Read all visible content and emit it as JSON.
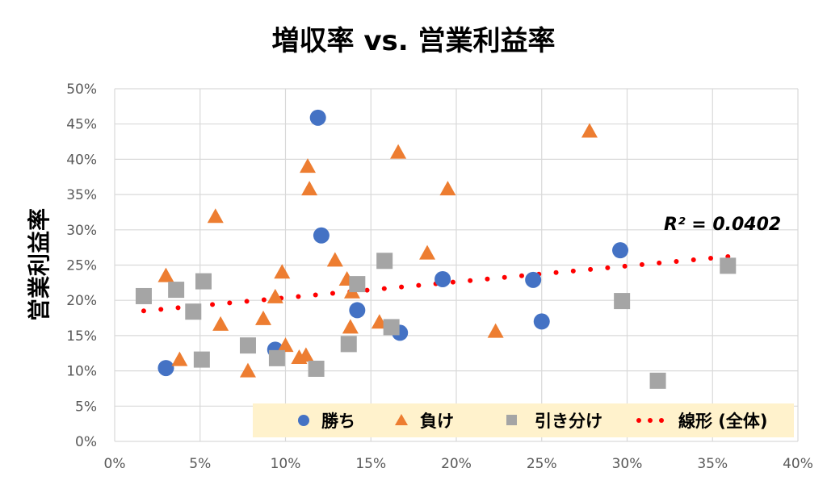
{
  "chart_data": {
    "type": "scatter",
    "title": "増収率 vs. 営業利益率",
    "xlabel": "",
    "ylabel": "営業利益率",
    "xlim": [
      0,
      40
    ],
    "ylim": [
      0,
      50
    ],
    "x_ticks": [
      "0%",
      "5%",
      "10%",
      "15%",
      "20%",
      "25%",
      "30%",
      "35%",
      "40%"
    ],
    "y_ticks": [
      "0%",
      "5%",
      "10%",
      "15%",
      "20%",
      "25%",
      "30%",
      "35%",
      "40%",
      "45%",
      "50%"
    ],
    "grid": true,
    "legend_position": "bottom-inside",
    "colors": {
      "win": "#4472c4",
      "lose": "#ed7d31",
      "draw": "#a5a5a5",
      "trend": "#ff0000",
      "legend_bg": "#fff2cc"
    },
    "series": [
      {
        "name": "勝ち",
        "marker": "circle",
        "points": [
          [
            3.0,
            10.4
          ],
          [
            11.9,
            45.9
          ],
          [
            12.1,
            29.2
          ],
          [
            9.4,
            13.0
          ],
          [
            14.2,
            18.6
          ],
          [
            16.7,
            15.4
          ],
          [
            19.2,
            23.0
          ],
          [
            24.5,
            22.9
          ],
          [
            25.0,
            17.0
          ],
          [
            29.6,
            27.1
          ]
        ]
      },
      {
        "name": "負け",
        "marker": "triangle",
        "points": [
          [
            3.0,
            23.5
          ],
          [
            3.8,
            11.6
          ],
          [
            5.9,
            31.9
          ],
          [
            6.2,
            16.6
          ],
          [
            7.8,
            10.0
          ],
          [
            8.7,
            17.4
          ],
          [
            9.4,
            20.5
          ],
          [
            9.8,
            24.0
          ],
          [
            10.0,
            13.6
          ],
          [
            11.3,
            39.0
          ],
          [
            11.4,
            35.8
          ],
          [
            10.8,
            11.9
          ],
          [
            11.2,
            12.2
          ],
          [
            12.9,
            25.7
          ],
          [
            13.6,
            23.0
          ],
          [
            13.8,
            16.2
          ],
          [
            13.9,
            21.2
          ],
          [
            15.5,
            16.9
          ],
          [
            16.6,
            41.0
          ],
          [
            18.3,
            26.7
          ],
          [
            19.5,
            35.8
          ],
          [
            22.3,
            15.6
          ],
          [
            27.8,
            44.0
          ]
        ]
      },
      {
        "name": "引き分け",
        "marker": "square",
        "points": [
          [
            1.7,
            20.6
          ],
          [
            3.6,
            21.5
          ],
          [
            5.2,
            22.7
          ],
          [
            4.6,
            18.4
          ],
          [
            5.1,
            11.6
          ],
          [
            7.8,
            13.6
          ],
          [
            9.5,
            11.8
          ],
          [
            11.8,
            10.3
          ],
          [
            13.7,
            13.8
          ],
          [
            14.2,
            22.3
          ],
          [
            15.8,
            25.6
          ],
          [
            16.2,
            16.2
          ],
          [
            29.7,
            19.9
          ],
          [
            31.8,
            8.6
          ],
          [
            35.9,
            24.9
          ]
        ]
      }
    ],
    "trendline": {
      "name": "線形 (全体)",
      "type": "linear",
      "x_range": [
        1.7,
        35.9
      ],
      "y_range": [
        18.5,
        26.2
      ],
      "r2_label": "R² = 0.0402"
    }
  }
}
